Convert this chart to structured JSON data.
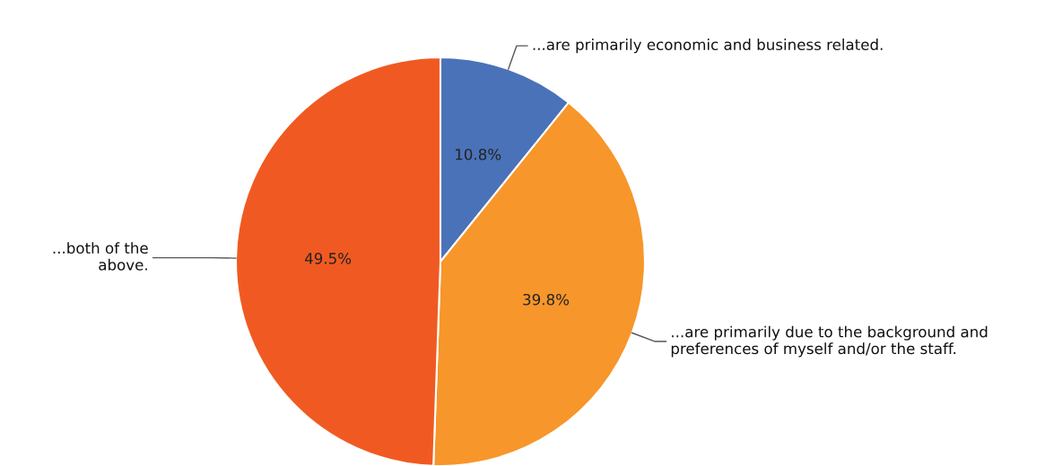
{
  "chart_data": {
    "type": "pie",
    "categories": [
      "...are primarily economic and business related.",
      "...are primarily due to the background and preferences of myself and/or the staff.",
      "...both of the above."
    ],
    "values": [
      10.8,
      39.8,
      49.5
    ],
    "colors": [
      "#4a72b8",
      "#f7962a",
      "#f05a22"
    ],
    "value_labels": [
      "10.8%",
      "39.8%",
      "49.5%"
    ]
  }
}
